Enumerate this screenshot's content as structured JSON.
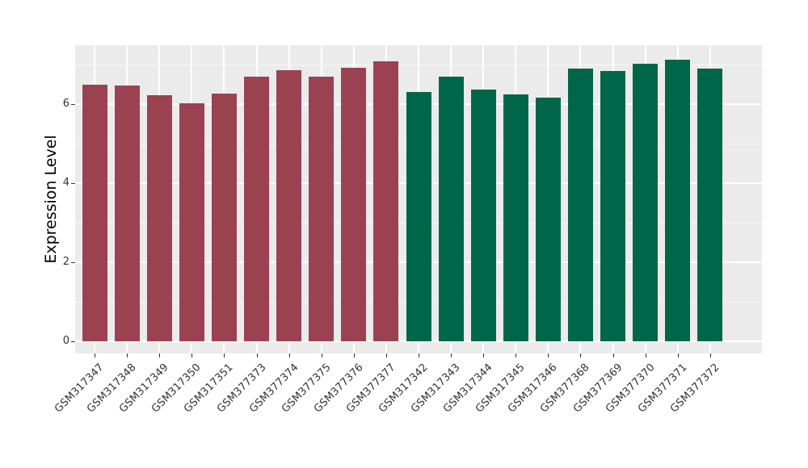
{
  "chart_data": {
    "type": "bar",
    "title": "",
    "xlabel": "",
    "ylabel": "Expression Level",
    "ylim": [
      0,
      7.5
    ],
    "yticks": [
      0,
      2,
      4,
      6
    ],
    "minor_gridlines": [
      1,
      3,
      5,
      7
    ],
    "grid": true,
    "legend_position": "none",
    "categories": [
      "GSM317347",
      "GSM317348",
      "GSM317349",
      "GSM317350",
      "GSM317351",
      "GSM377373",
      "GSM377374",
      "GSM377375",
      "GSM377376",
      "GSM377377",
      "GSM317342",
      "GSM317343",
      "GSM317344",
      "GSM317345",
      "GSM317346",
      "GSM377368",
      "GSM377369",
      "GSM377370",
      "GSM377371",
      "GSM377372"
    ],
    "values": [
      6.48,
      6.46,
      6.22,
      6.02,
      6.26,
      6.7,
      6.85,
      6.69,
      6.92,
      7.09,
      6.31,
      6.69,
      6.37,
      6.24,
      6.16,
      6.9,
      6.84,
      7.02,
      7.12,
      6.9
    ],
    "bar_colors": [
      "#9B4251",
      "#9B4251",
      "#9B4251",
      "#9B4251",
      "#9B4251",
      "#9B4251",
      "#9B4251",
      "#9B4251",
      "#9B4251",
      "#9B4251",
      "#00664A",
      "#00664A",
      "#00664A",
      "#00664A",
      "#00664A",
      "#00664A",
      "#00664A",
      "#00664A",
      "#00664A",
      "#00664A"
    ],
    "series": [
      {
        "name": "group-1-maroon",
        "color": "#9B4251",
        "categories": [
          "GSM317347",
          "GSM317348",
          "GSM317349",
          "GSM317350",
          "GSM317351",
          "GSM377373",
          "GSM377374",
          "GSM377375",
          "GSM377376",
          "GSM377377"
        ],
        "values": [
          6.48,
          6.46,
          6.22,
          6.02,
          6.26,
          6.7,
          6.85,
          6.69,
          6.92,
          7.09
        ]
      },
      {
        "name": "group-2-green",
        "color": "#00664A",
        "categories": [
          "GSM317342",
          "GSM317343",
          "GSM317344",
          "GSM317345",
          "GSM317346",
          "GSM377368",
          "GSM377369",
          "GSM377370",
          "GSM377371",
          "GSM377372"
        ],
        "values": [
          6.31,
          6.69,
          6.37,
          6.24,
          6.16,
          6.9,
          6.84,
          7.02,
          7.12,
          6.9
        ]
      }
    ],
    "style": {
      "panel_background": "#EBEBEB",
      "grid_major_color": "#FFFFFF",
      "grid_minor_color": "#FFFFFF",
      "axis_text_color": "#333333",
      "axis_title_color": "#000000",
      "figure_background": "#FFFFFF"
    }
  }
}
